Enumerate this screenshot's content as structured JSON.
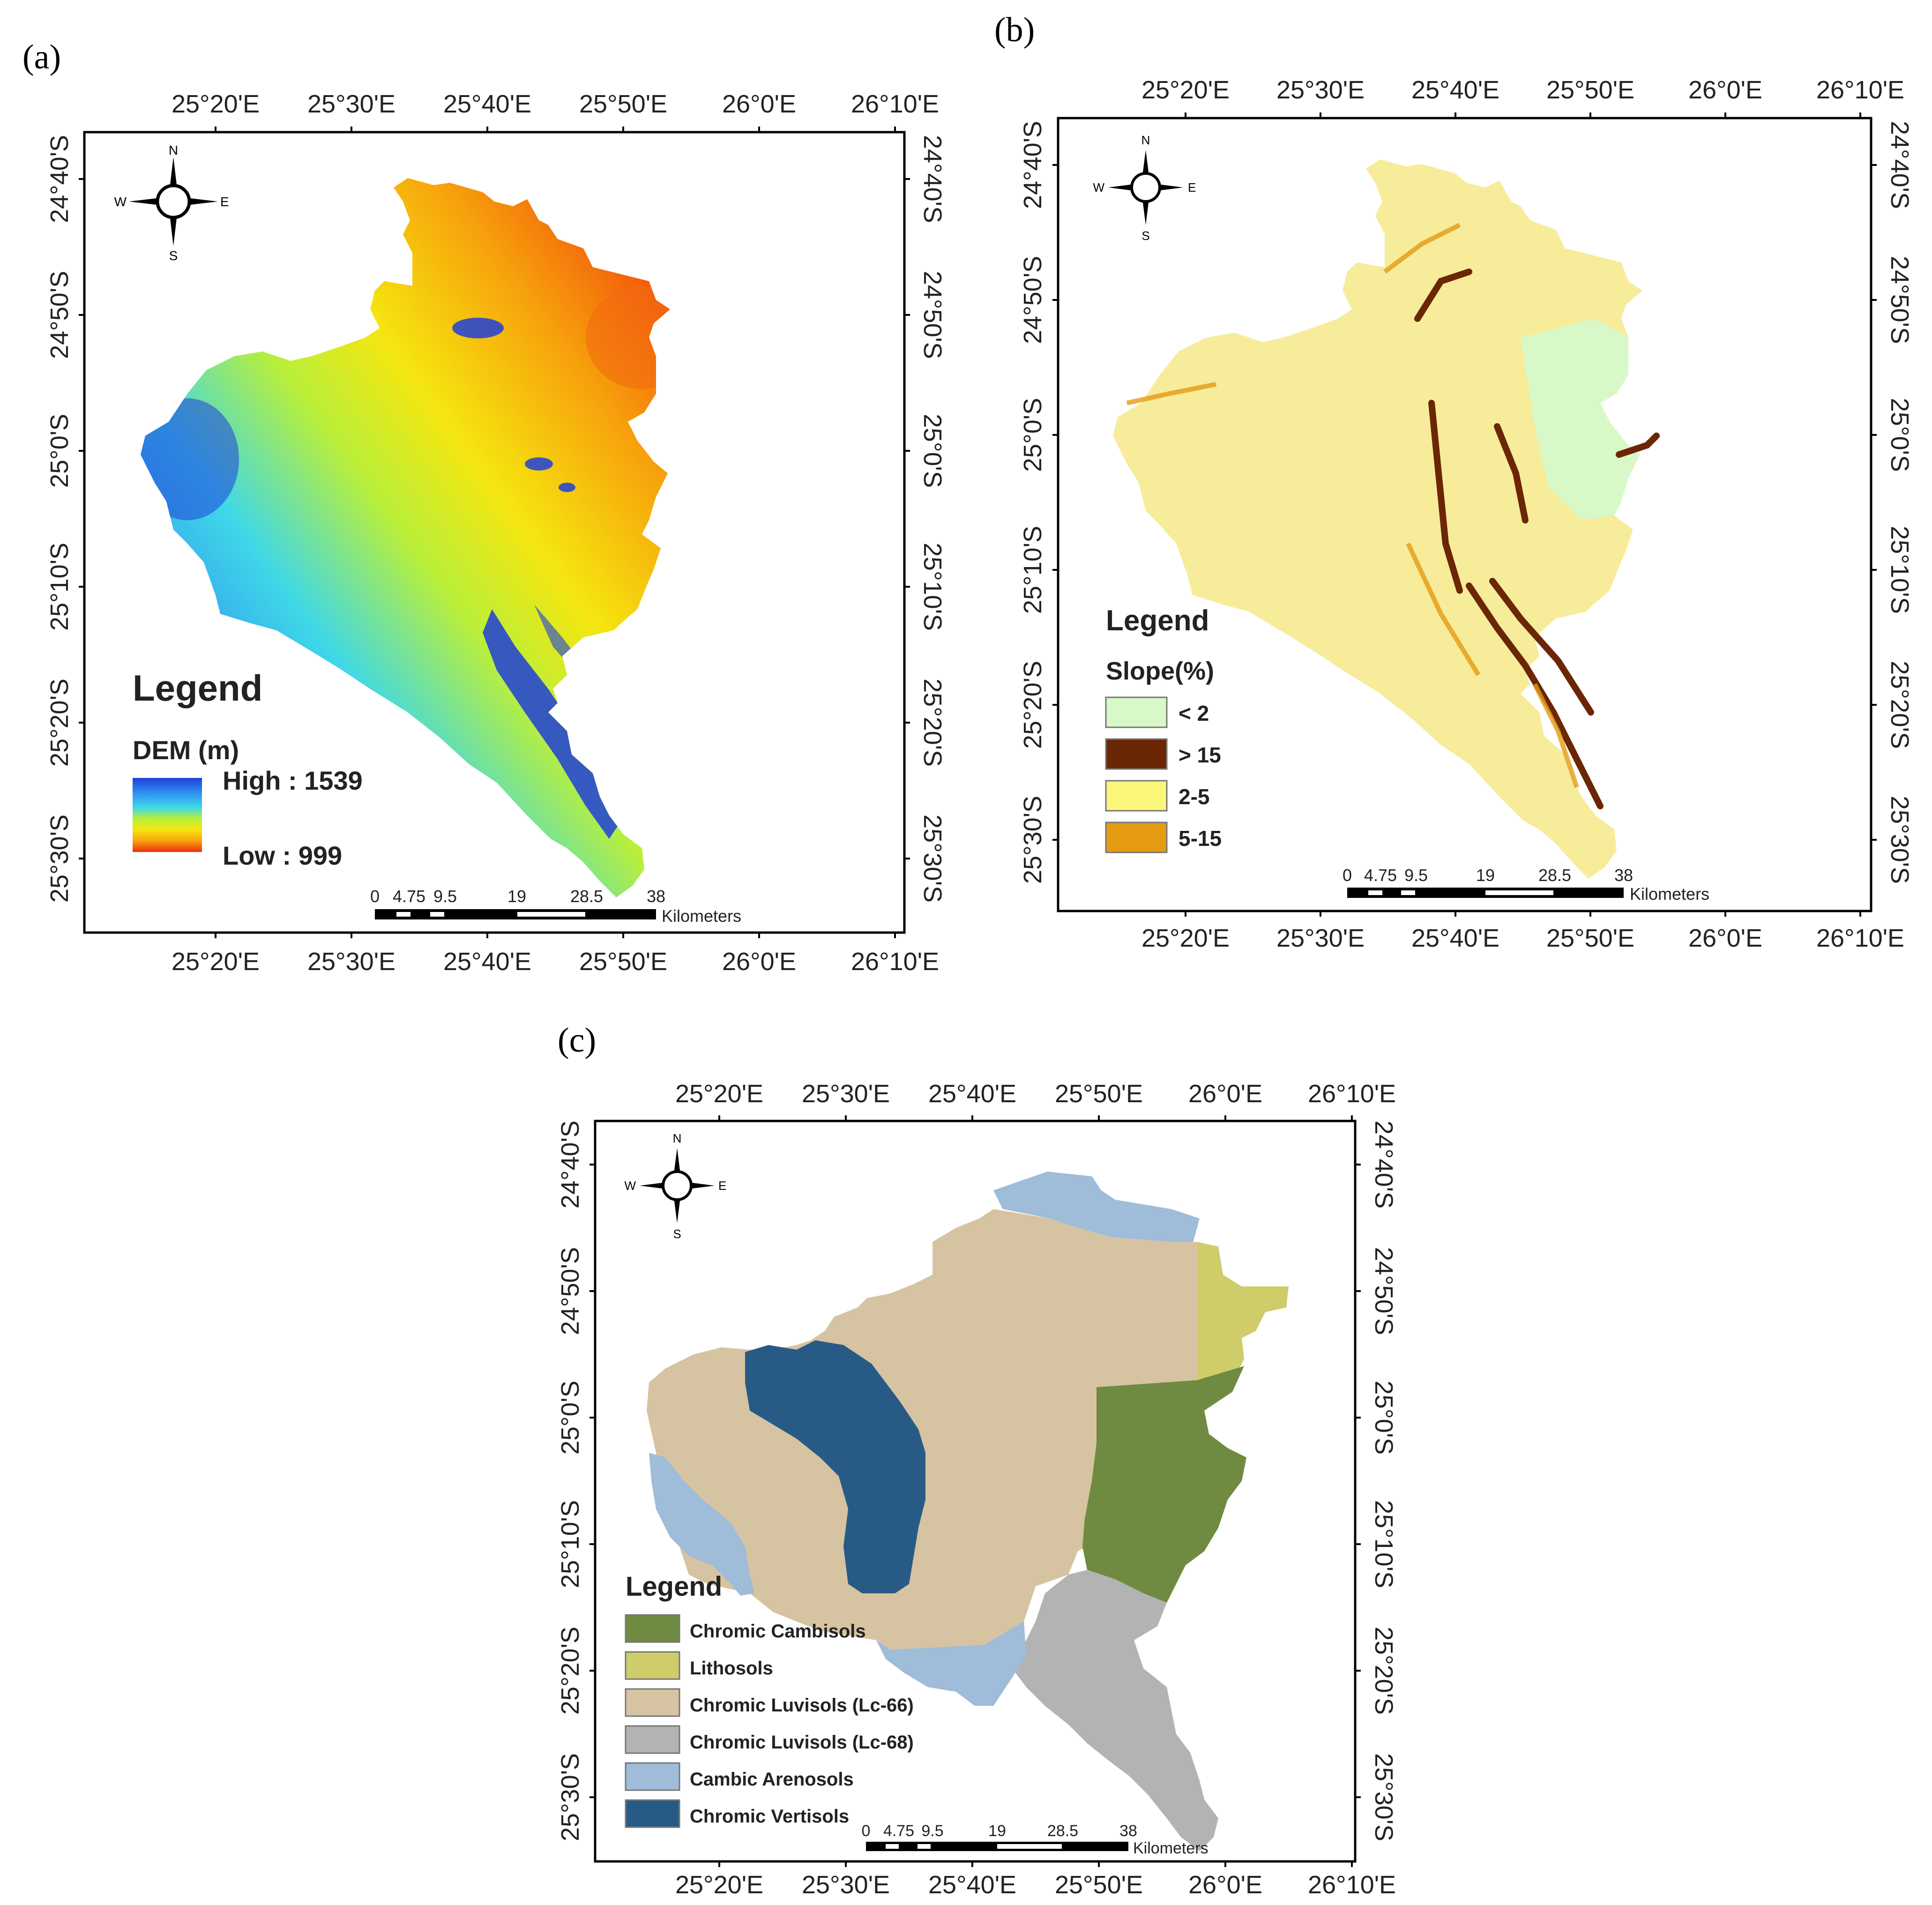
{
  "panels": [
    {
      "id": "a",
      "letter": "(a)",
      "lon_labels": [
        "25°20'E",
        "25°30'E",
        "25°40'E",
        "25°50'E",
        "26°0'E",
        "26°10'E"
      ],
      "lat_labels": [
        "24°40'S",
        "24°50'S",
        "25°0'S",
        "25°10'S",
        "25°20'S",
        "25°30'S"
      ],
      "compass": {
        "n": "N",
        "s": "S",
        "e": "E",
        "w": "W"
      },
      "legend": {
        "title": "Legend",
        "subtitle": "DEM (m)",
        "high_label": "High : 1539",
        "low_label": "Low : 999",
        "gradient_colors": [
          "#1f3fd8",
          "#2f8ff0",
          "#3fd8e8",
          "#b9ef3a",
          "#f5e60f",
          "#f7a20c",
          "#ef2a0c"
        ]
      },
      "scalebar": {
        "ticks": [
          "0",
          "4.75",
          "9.5",
          "19",
          "28.5",
          "38"
        ],
        "unit": "Kilometers"
      }
    },
    {
      "id": "b",
      "letter": "(b)",
      "lon_labels": [
        "25°20'E",
        "25°30'E",
        "25°40'E",
        "25°50'E",
        "26°0'E",
        "26°10'E"
      ],
      "lat_labels": [
        "24°40'S",
        "24°50'S",
        "25°0'S",
        "25°10'S",
        "25°20'S",
        "25°30'S"
      ],
      "compass": {
        "n": "N",
        "s": "S",
        "e": "E",
        "w": "W"
      },
      "legend": {
        "title": "Legend",
        "subtitle": "Slope(%)",
        "items": [
          {
            "label": "< 2",
            "color": "#d8f8c8"
          },
          {
            "label": "> 15",
            "color": "#6b2605"
          },
          {
            "label": "2-5",
            "color": "#fbf77a"
          },
          {
            "label": "5-15",
            "color": "#e49b12"
          }
        ]
      },
      "scalebar": {
        "ticks": [
          "0",
          "4.75",
          "9.5",
          "19",
          "28.5",
          "38"
        ],
        "unit": "Kilometers"
      }
    },
    {
      "id": "c",
      "letter": "(c)",
      "lon_labels": [
        "25°20'E",
        "25°30'E",
        "25°40'E",
        "25°50'E",
        "26°0'E",
        "26°10'E"
      ],
      "lat_labels": [
        "24°40'S",
        "24°50'S",
        "25°0'S",
        "25°10'S",
        "25°20'S",
        "25°30'S"
      ],
      "compass": {
        "n": "N",
        "s": "S",
        "e": "E",
        "w": "W"
      },
      "legend": {
        "title": "Legend",
        "items": [
          {
            "label": "Chromic Cambisols",
            "color": "#6f8b41"
          },
          {
            "label": "Lithosols",
            "color": "#cfcc6a"
          },
          {
            "label": "Chromic Luvisols (Lc-66)",
            "color": "#d6c3a1"
          },
          {
            "label": "Chromic Luvisols (Lc-68)",
            "color": "#b3b3b3"
          },
          {
            "label": "Cambic Arenosols",
            "color": "#9fbcd8"
          },
          {
            "label": "Chromic Vertisols",
            "color": "#275b86"
          }
        ]
      },
      "scalebar": {
        "ticks": [
          "0",
          "4.75",
          "9.5",
          "19",
          "28.5",
          "38"
        ],
        "unit": "Kilometers"
      }
    }
  ]
}
